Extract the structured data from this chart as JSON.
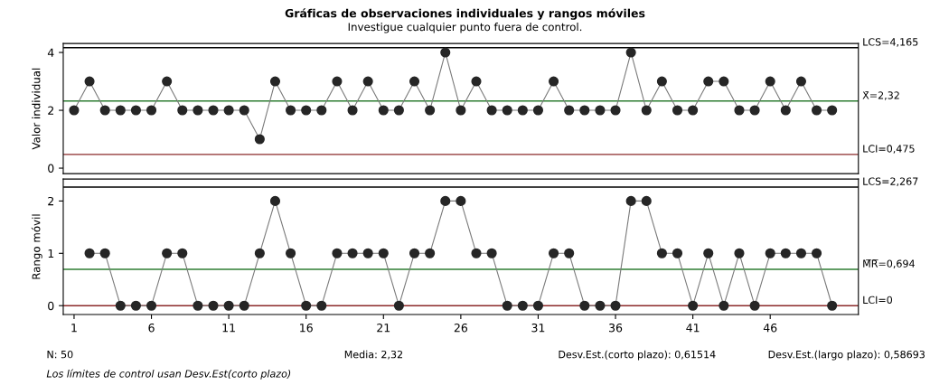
{
  "chart_data": [
    {
      "type": "line",
      "title": "Gráficas de observaciones individuales y rangos móviles",
      "subtitle": "Investigue cualquier punto fuera de control.",
      "ylabel": "Valor individual",
      "x": [
        1,
        2,
        3,
        4,
        5,
        6,
        7,
        8,
        9,
        10,
        11,
        12,
        13,
        14,
        15,
        16,
        17,
        18,
        19,
        20,
        21,
        22,
        23,
        24,
        25,
        26,
        27,
        28,
        29,
        30,
        31,
        32,
        33,
        34,
        35,
        36,
        37,
        38,
        39,
        40,
        41,
        42,
        43,
        44,
        45,
        46,
        47,
        48,
        49,
        50
      ],
      "series": [
        {
          "color": "#262626",
          "values": [
            2,
            3,
            2,
            2,
            2,
            2,
            3,
            2,
            2,
            2,
            2,
            2,
            1,
            3,
            2,
            2,
            2,
            3,
            2,
            3,
            2,
            2,
            3,
            2,
            4,
            2,
            3,
            2,
            2,
            2,
            2,
            3,
            2,
            2,
            2,
            2,
            4,
            2,
            3,
            2,
            2,
            3,
            3,
            2,
            2,
            3,
            2,
            3,
            2,
            2
          ]
        }
      ],
      "marker": "circle",
      "xlim": [
        0.3,
        51.7
      ],
      "ylim": [
        -0.19,
        4.31
      ],
      "yticks": [
        0,
        2,
        4
      ],
      "tick_labels": "y",
      "ref_lines": [
        {
          "axis": "y",
          "value": 4.165,
          "label": "LCS=4,165",
          "color": "#000000"
        },
        {
          "axis": "y",
          "value": 2.32,
          "label": "X̄=2,32",
          "color": "#2e7d32"
        },
        {
          "axis": "y",
          "value": 0.475,
          "label": "LCI=0,475",
          "color": "#8b2a2a"
        }
      ]
    },
    {
      "type": "line",
      "ylabel": "Rango móvil",
      "x": [
        2,
        3,
        4,
        5,
        6,
        7,
        8,
        9,
        10,
        11,
        12,
        13,
        14,
        15,
        16,
        17,
        18,
        19,
        20,
        21,
        22,
        23,
        24,
        25,
        26,
        27,
        28,
        29,
        30,
        31,
        32,
        33,
        34,
        35,
        36,
        37,
        38,
        39,
        40,
        41,
        42,
        43,
        44,
        45,
        46,
        47,
        48,
        49,
        50
      ],
      "series": [
        {
          "color": "#262626",
          "values": [
            1,
            1,
            0,
            0,
            0,
            1,
            1,
            0,
            0,
            0,
            0,
            1,
            2,
            1,
            0,
            0,
            1,
            1,
            1,
            1,
            0,
            1,
            1,
            2,
            2,
            1,
            1,
            0,
            0,
            0,
            1,
            1,
            0,
            0,
            0,
            2,
            2,
            1,
            1,
            0,
            1,
            0,
            1,
            0,
            1,
            1,
            1,
            1,
            0
          ]
        }
      ],
      "marker": "circle",
      "xlim": [
        0.3,
        51.7
      ],
      "xticks": [
        1,
        6,
        11,
        16,
        21,
        26,
        31,
        36,
        41,
        46
      ],
      "ylim": [
        -0.17,
        2.42
      ],
      "yticks": [
        0,
        1,
        2
      ],
      "ref_lines": [
        {
          "axis": "y",
          "value": 2.267,
          "label": "LCS=2,267",
          "color": "#000000"
        },
        {
          "axis": "y",
          "value": 0.694,
          "label": "M̅R̅=0,694",
          "color": "#2e7d32"
        },
        {
          "axis": "y",
          "value": 0,
          "label": "LCI=0",
          "color": "#8b2a2a"
        }
      ],
      "annotations": [
        "N: 50",
        "Media: 2,32",
        "Desv.Est.(corto plazo): 0,61514",
        "Desv.Est.(largo plazo): 0,58693",
        "Los límites de control usan Desv.Est(corto plazo)"
      ]
    }
  ]
}
